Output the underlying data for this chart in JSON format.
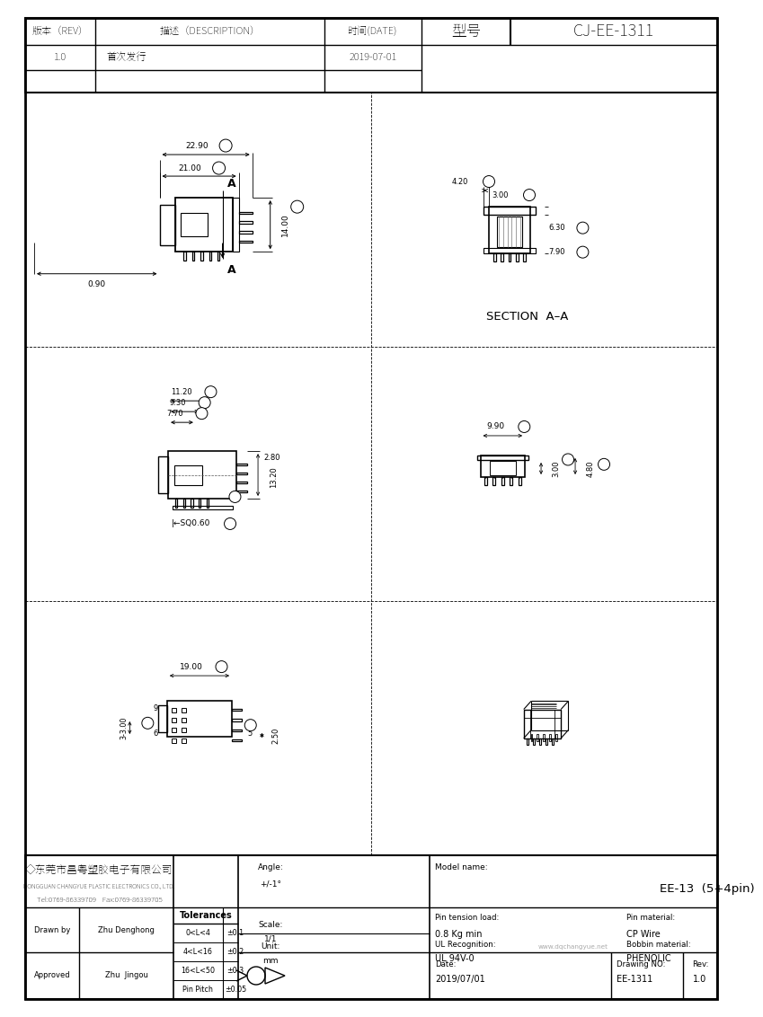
{
  "title_header": {
    "col1_label": "版本（REV）",
    "col2_label": "描述（DESCRIPTION）",
    "col3_label": "时间(DATE)",
    "col4_label": "型号",
    "col5_label": "CJ-EE-1311",
    "row1_rev": "1.0",
    "row1_desc": "首次发行",
    "row1_date": "2019-07-01"
  },
  "footer": {
    "company_cn": "◇东莞市昌粤塑胶电子有限公司",
    "company_en": "DONGGUAN CHANGYUE PLASTIC ELECTRONICS CO., LTD.",
    "tel_fax": "Tel:0769-86339709    Fax:0769-86339705",
    "tol_rows": [
      [
        "0<L<4",
        "±0.1"
      ],
      [
        "4<L<16",
        "±0.2"
      ],
      [
        "16<L<50",
        "±0.3"
      ],
      [
        "Pin Pitch",
        "±0.05"
      ]
    ],
    "drawn_by_value": "Zhu Denghong",
    "approved_value": "Zhu  Jingou",
    "model_name_value": "EE-13  (5+4pin)",
    "ul_value": "UL 94V-0",
    "bobbin_value": "PHENOLIC",
    "pin_tension_value": "0.8 Kg min",
    "pin_material_value": "CP Wire",
    "date_value": "2019/07/01",
    "drawing_no_value": "EE-1311",
    "rev_value": "1.0",
    "watermark": "www.dqchangyue.net"
  },
  "fig_width": 8.0,
  "fig_height": 11.12
}
